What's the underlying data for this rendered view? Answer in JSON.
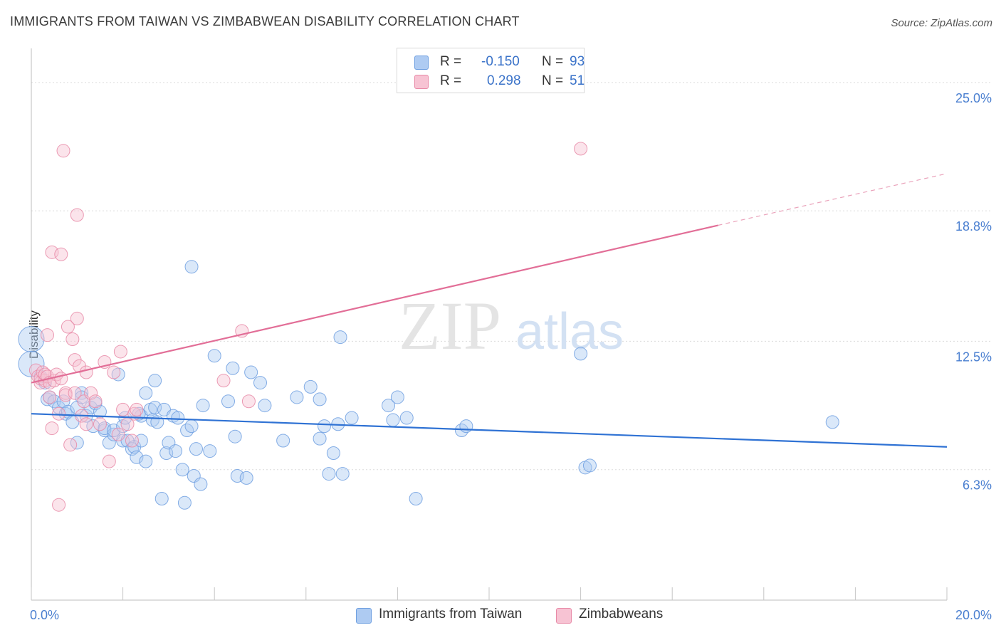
{
  "header": {
    "title": "IMMIGRANTS FROM TAIWAN VS ZIMBABWEAN DISABILITY CORRELATION CHART",
    "source": "Source: ZipAtlas.com"
  },
  "watermark": {
    "zip": "ZIP",
    "atlas": "atlas"
  },
  "legend_top": {
    "rows": [
      {
        "r_label": "R =",
        "r_value": "-0.150",
        "n_label": "N =",
        "n_value": "93",
        "color": "#aecbf2",
        "border": "#6e9fe0"
      },
      {
        "r_label": "R =",
        "r_value": "0.298",
        "n_label": "N =",
        "n_value": "51",
        "color": "#f7c3d3",
        "border": "#e88aa7"
      }
    ]
  },
  "legend_bottom": {
    "items": [
      {
        "label": "Immigrants from Taiwan",
        "color": "#aecbf2",
        "border": "#6e9fe0"
      },
      {
        "label": "Zimbabweans",
        "color": "#f7c3d3",
        "border": "#e88aa7"
      }
    ]
  },
  "chart_data": {
    "type": "scatter",
    "title": "IMMIGRANTS FROM TAIWAN VS ZIMBABWEAN DISABILITY CORRELATION CHART",
    "xlabel": "",
    "ylabel": "Disability",
    "xlim": [
      0,
      20
    ],
    "ylim": [
      0,
      26.3
    ],
    "x_tick_labels": [
      {
        "value": 0,
        "label": "0.0%"
      },
      {
        "value": 20,
        "label": "20.0%"
      }
    ],
    "y_tick_labels": [
      {
        "value": 6.3,
        "label": "6.3%"
      },
      {
        "value": 12.5,
        "label": "12.5%"
      },
      {
        "value": 18.8,
        "label": "18.8%"
      },
      {
        "value": 25.0,
        "label": "25.0%"
      }
    ],
    "grid": "horizontal-dashed",
    "legend_position": "top-center",
    "series": [
      {
        "name": "Immigrants from Taiwan",
        "color": "#6e9fe0",
        "fill": "#aecbf2",
        "trend": {
          "x": [
            0,
            20
          ],
          "y": [
            9.0,
            7.4
          ]
        },
        "points": [
          [
            0.0,
            12.6
          ],
          [
            0.0,
            11.4
          ],
          [
            0.3,
            10.5
          ],
          [
            0.35,
            9.7
          ],
          [
            0.4,
            9.8
          ],
          [
            0.5,
            9.6
          ],
          [
            0.6,
            9.3
          ],
          [
            0.7,
            9.6
          ],
          [
            0.75,
            9.0
          ],
          [
            0.8,
            9.1
          ],
          [
            0.9,
            8.6
          ],
          [
            1.0,
            9.3
          ],
          [
            1.0,
            7.6
          ],
          [
            1.1,
            10.0
          ],
          [
            1.2,
            8.9
          ],
          [
            1.3,
            9.3
          ],
          [
            1.35,
            8.4
          ],
          [
            1.4,
            9.5
          ],
          [
            1.5,
            9.1
          ],
          [
            1.6,
            8.2
          ],
          [
            1.6,
            8.3
          ],
          [
            1.7,
            7.6
          ],
          [
            1.8,
            8.0
          ],
          [
            1.8,
            8.2
          ],
          [
            1.9,
            10.9
          ],
          [
            2.0,
            8.4
          ],
          [
            2.0,
            7.7
          ],
          [
            2.05,
            8.8
          ],
          [
            2.1,
            7.7
          ],
          [
            2.2,
            7.3
          ],
          [
            2.25,
            7.4
          ],
          [
            2.3,
            6.9
          ],
          [
            2.4,
            8.9
          ],
          [
            2.4,
            7.7
          ],
          [
            2.5,
            6.7
          ],
          [
            2.5,
            10.0
          ],
          [
            2.6,
            9.2
          ],
          [
            2.65,
            8.7
          ],
          [
            2.7,
            9.3
          ],
          [
            2.7,
            10.6
          ],
          [
            2.75,
            8.6
          ],
          [
            2.85,
            4.9
          ],
          [
            2.9,
            9.2
          ],
          [
            2.95,
            7.1
          ],
          [
            3.0,
            7.6
          ],
          [
            3.1,
            8.9
          ],
          [
            3.15,
            7.2
          ],
          [
            3.2,
            8.8
          ],
          [
            3.3,
            6.3
          ],
          [
            3.35,
            4.7
          ],
          [
            3.4,
            8.2
          ],
          [
            3.5,
            8.4
          ],
          [
            3.5,
            16.1
          ],
          [
            3.55,
            6.0
          ],
          [
            3.6,
            7.3
          ],
          [
            3.7,
            5.6
          ],
          [
            3.75,
            9.4
          ],
          [
            3.9,
            7.2
          ],
          [
            4.0,
            11.8
          ],
          [
            4.3,
            9.6
          ],
          [
            4.4,
            11.2
          ],
          [
            4.45,
            7.9
          ],
          [
            4.5,
            6.0
          ],
          [
            4.7,
            5.9
          ],
          [
            4.8,
            11.0
          ],
          [
            5.0,
            10.5
          ],
          [
            5.1,
            9.4
          ],
          [
            5.5,
            7.7
          ],
          [
            5.8,
            9.8
          ],
          [
            6.1,
            10.3
          ],
          [
            6.3,
            7.8
          ],
          [
            6.3,
            9.7
          ],
          [
            6.4,
            8.4
          ],
          [
            6.5,
            6.1
          ],
          [
            6.6,
            7.1
          ],
          [
            6.7,
            8.5
          ],
          [
            6.8,
            6.1
          ],
          [
            6.75,
            12.7
          ],
          [
            7.0,
            8.8
          ],
          [
            7.8,
            9.4
          ],
          [
            7.9,
            8.7
          ],
          [
            8.0,
            9.8
          ],
          [
            8.2,
            8.8
          ],
          [
            8.4,
            4.9
          ],
          [
            9.4,
            8.2
          ],
          [
            9.5,
            8.4
          ],
          [
            12.0,
            11.9
          ],
          [
            12.1,
            6.4
          ],
          [
            12.2,
            6.5
          ],
          [
            17.5,
            8.6
          ],
          [
            0.2,
            10.8
          ],
          [
            1.1,
            9.8
          ],
          [
            2.35,
            9.0
          ]
        ]
      },
      {
        "name": "Zimbabweans",
        "color": "#e88aa7",
        "fill": "#f7c3d3",
        "trend": {
          "x": [
            0,
            15
          ],
          "y": [
            10.5,
            18.1
          ]
        },
        "trend_dashed": {
          "x": [
            15,
            20
          ],
          "y": [
            18.1,
            20.6
          ]
        },
        "points": [
          [
            0.1,
            11.1
          ],
          [
            0.15,
            10.8
          ],
          [
            0.2,
            10.5
          ],
          [
            0.2,
            10.7
          ],
          [
            0.25,
            11.0
          ],
          [
            0.3,
            10.6
          ],
          [
            0.3,
            10.9
          ],
          [
            0.35,
            10.8
          ],
          [
            0.35,
            12.8
          ],
          [
            0.4,
            10.5
          ],
          [
            0.4,
            9.8
          ],
          [
            0.45,
            8.3
          ],
          [
            0.45,
            16.8
          ],
          [
            0.5,
            10.6
          ],
          [
            0.55,
            10.9
          ],
          [
            0.6,
            9.0
          ],
          [
            0.65,
            10.7
          ],
          [
            0.6,
            4.6
          ],
          [
            0.65,
            16.7
          ],
          [
            0.7,
            21.7
          ],
          [
            0.75,
            10.0
          ],
          [
            0.75,
            9.9
          ],
          [
            0.8,
            13.2
          ],
          [
            0.85,
            7.5
          ],
          [
            0.9,
            12.6
          ],
          [
            0.95,
            11.6
          ],
          [
            0.95,
            10.0
          ],
          [
            1.0,
            18.6
          ],
          [
            1.0,
            13.6
          ],
          [
            1.05,
            11.3
          ],
          [
            1.1,
            8.9
          ],
          [
            1.15,
            9.6
          ],
          [
            1.2,
            8.5
          ],
          [
            1.2,
            11.0
          ],
          [
            1.3,
            10.0
          ],
          [
            1.4,
            9.6
          ],
          [
            1.5,
            8.5
          ],
          [
            1.6,
            11.5
          ],
          [
            1.7,
            6.7
          ],
          [
            1.8,
            11.0
          ],
          [
            1.9,
            8.0
          ],
          [
            1.95,
            12.0
          ],
          [
            2.0,
            9.2
          ],
          [
            2.1,
            8.5
          ],
          [
            2.2,
            7.7
          ],
          [
            2.25,
            9.0
          ],
          [
            2.3,
            9.2
          ],
          [
            4.2,
            10.6
          ],
          [
            4.6,
            13.0
          ],
          [
            4.75,
            9.6
          ],
          [
            12.0,
            21.8
          ]
        ]
      }
    ]
  }
}
